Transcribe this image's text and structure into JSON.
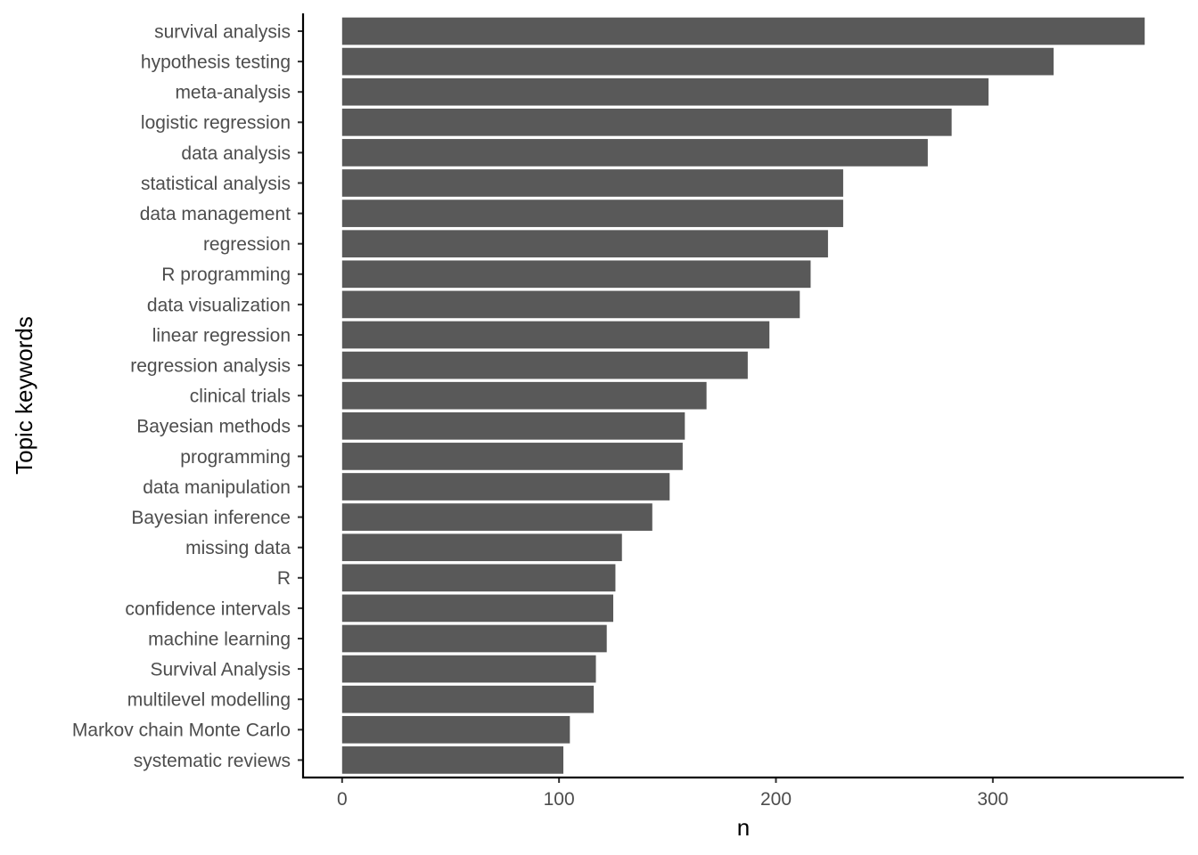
{
  "chart_data": {
    "type": "bar",
    "orientation": "horizontal",
    "xlabel": "n",
    "ylabel": "Topic keywords",
    "xlim": [
      -18,
      388
    ],
    "xticks": [
      0,
      100,
      200,
      300
    ],
    "grid": false,
    "bar_color": "#595959",
    "categories": [
      "survival analysis",
      "hypothesis testing",
      "meta-analysis",
      "logistic regression",
      "data analysis",
      "statistical analysis",
      "data management",
      "regression",
      "R programming",
      "data visualization",
      "linear regression",
      "regression analysis",
      "clinical trials",
      "Bayesian methods",
      "programming",
      "data manipulation",
      "Bayesian inference",
      "missing data",
      "R",
      "confidence intervals",
      "machine learning",
      "Survival Analysis",
      "multilevel modelling",
      "Markov chain Monte Carlo",
      "systematic reviews"
    ],
    "values": [
      370,
      328,
      298,
      281,
      270,
      231,
      231,
      224,
      216,
      211,
      197,
      187,
      168,
      158,
      157,
      151,
      143,
      129,
      126,
      125,
      122,
      117,
      116,
      105,
      102
    ]
  }
}
